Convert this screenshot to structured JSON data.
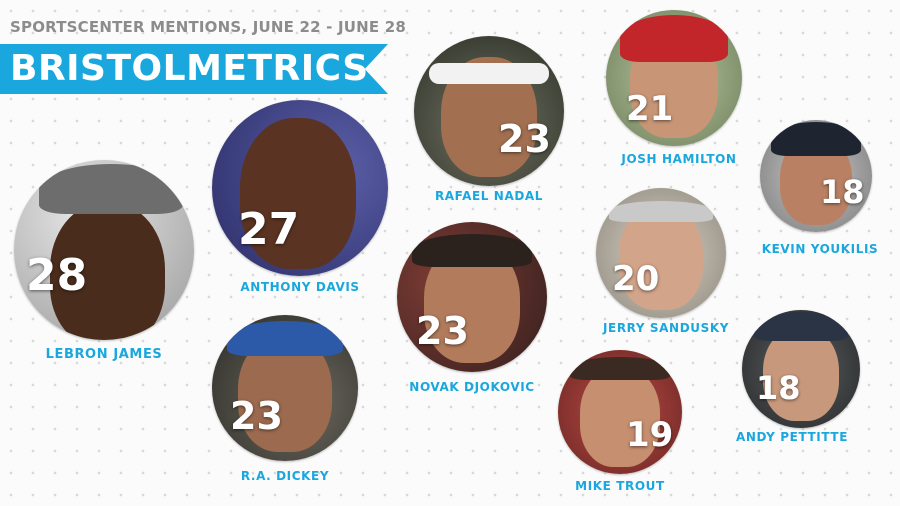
{
  "header": {
    "subtitle": "SPORTSCENTER MENTIONS, JUNE 22 - JUNE 28",
    "title": "BRISTOLMETRICS",
    "accent_color": "#1aa7de"
  },
  "athletes": [
    {
      "name": "LEBRON JAMES",
      "mentions": "28"
    },
    {
      "name": "ANTHONY DAVIS",
      "mentions": "27"
    },
    {
      "name": "RAFAEL NADAL",
      "mentions": "23"
    },
    {
      "name": "NOVAK DJOKOVIC",
      "mentions": "23"
    },
    {
      "name": "R.A. DICKEY",
      "mentions": "23"
    },
    {
      "name": "JOSH HAMILTON",
      "mentions": "21"
    },
    {
      "name": "JERRY SANDUSKY",
      "mentions": "20"
    },
    {
      "name": "MIKE TROUT",
      "mentions": "19"
    },
    {
      "name": "KEVIN YOUKILIS",
      "mentions": "18"
    },
    {
      "name": "ANDY PETTITTE",
      "mentions": "18"
    }
  ]
}
